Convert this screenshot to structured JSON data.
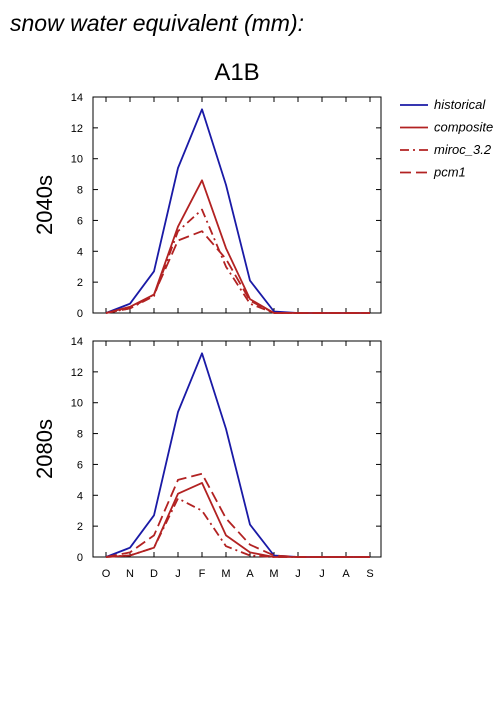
{
  "header": {
    "title": "snow water equivalent (mm):",
    "scenario": "A1B"
  },
  "legend": {
    "placement": "top-right",
    "items": [
      {
        "label": "historical",
        "color": "#1a1aa6",
        "dash": "solid"
      },
      {
        "label": "composite",
        "color": "#b22222",
        "dash": "solid"
      },
      {
        "label": "miroc_3.2",
        "color": "#b22222",
        "dash": "dash-dot"
      },
      {
        "label": "pcm1",
        "color": "#b22222",
        "dash": "dash"
      }
    ]
  },
  "chart_data": [
    {
      "type": "line",
      "ylabel": "2040s",
      "categories": [
        "O",
        "N",
        "D",
        "J",
        "F",
        "M",
        "A",
        "M",
        "J",
        "J",
        "A",
        "S"
      ],
      "ylim": [
        0,
        14
      ],
      "yticks": [
        0,
        2,
        4,
        6,
        8,
        10,
        12,
        14
      ],
      "series": [
        {
          "name": "historical",
          "values": [
            0,
            0.6,
            2.7,
            9.4,
            13.2,
            8.3,
            2.1,
            0.1,
            0,
            0,
            0,
            0
          ]
        },
        {
          "name": "composite",
          "values": [
            0,
            0.4,
            1.2,
            5.6,
            8.6,
            4.2,
            0.9,
            0,
            0,
            0,
            0,
            0
          ]
        },
        {
          "name": "miroc_3.2",
          "values": [
            0,
            0.3,
            1.1,
            5.3,
            6.7,
            3.0,
            0.6,
            0,
            0,
            0,
            0,
            0
          ]
        },
        {
          "name": "pcm1",
          "values": [
            0,
            0.3,
            1.2,
            4.7,
            5.3,
            3.5,
            0.8,
            0,
            0,
            0,
            0,
            0
          ]
        }
      ]
    },
    {
      "type": "line",
      "ylabel": "2080s",
      "categories": [
        "O",
        "N",
        "D",
        "J",
        "F",
        "M",
        "A",
        "M",
        "J",
        "J",
        "A",
        "S"
      ],
      "ylim": [
        0,
        14
      ],
      "yticks": [
        0,
        2,
        4,
        6,
        8,
        10,
        12,
        14
      ],
      "series": [
        {
          "name": "historical",
          "values": [
            0,
            0.6,
            2.7,
            9.4,
            13.2,
            8.3,
            2.1,
            0.1,
            0,
            0,
            0,
            0
          ]
        },
        {
          "name": "composite",
          "values": [
            0,
            0.1,
            0.6,
            4.1,
            4.8,
            1.4,
            0.3,
            0,
            0,
            0,
            0,
            0
          ]
        },
        {
          "name": "miroc_3.2",
          "values": [
            0,
            0.1,
            0.6,
            3.8,
            3.0,
            0.7,
            0.1,
            0,
            0,
            0,
            0,
            0
          ]
        },
        {
          "name": "pcm1",
          "values": [
            0,
            0.3,
            1.4,
            5.0,
            5.4,
            2.5,
            0.8,
            0.1,
            0,
            0,
            0,
            0
          ]
        }
      ]
    }
  ]
}
